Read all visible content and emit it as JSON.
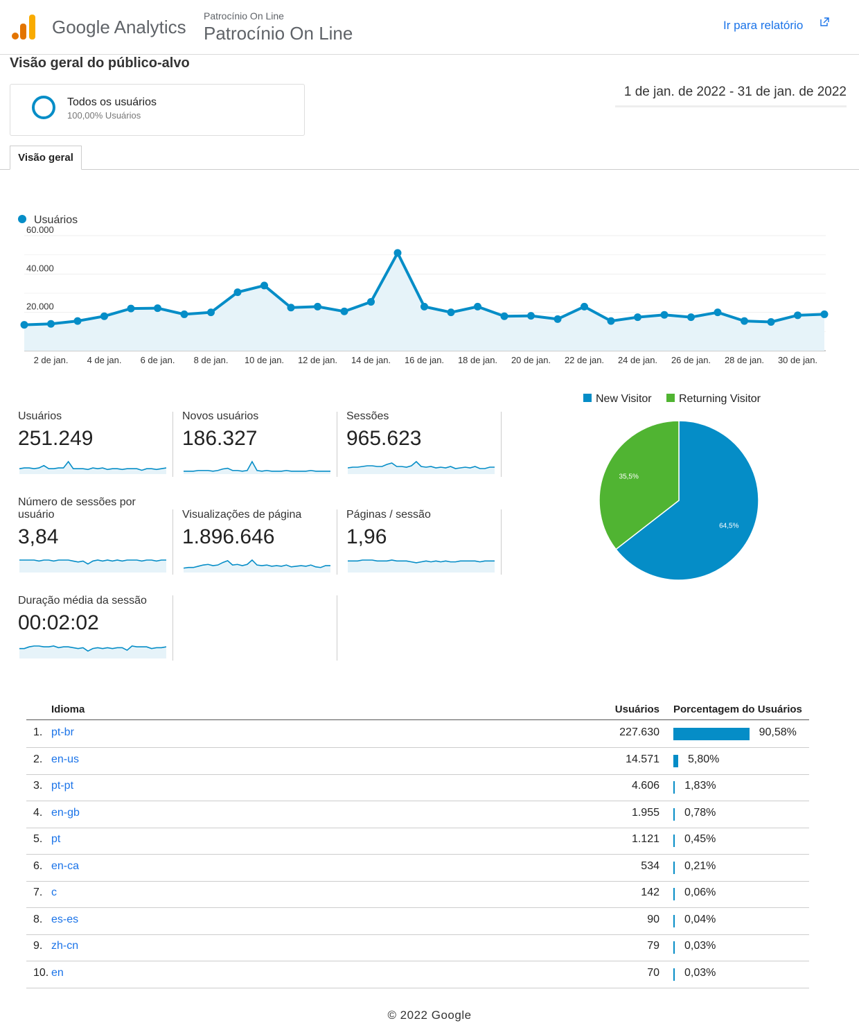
{
  "header": {
    "brand": "Google Analytics",
    "account_small": "Patrocínio On Line",
    "account_big": "Patrocínio On Line",
    "report_link": "Ir para relatório"
  },
  "page_title": "Visão geral do público-alvo",
  "segment": {
    "name": "Todos os usuários",
    "pct": "100,00% Usuários"
  },
  "date_range": "1 de jan. de 2022 - 31 de jan. de 2022",
  "tabs": [
    {
      "label": "Visão geral"
    }
  ],
  "colors": {
    "primary": "#058dc7",
    "green": "#50b432",
    "link": "#1a73e8"
  },
  "chart_data": {
    "type": "line",
    "series": [
      {
        "name": "Usuários",
        "values": [
          13500,
          14000,
          15500,
          18000,
          22000,
          22200,
          19000,
          20000,
          30500,
          34000,
          22500,
          23000,
          20500,
          25500,
          51000,
          23000,
          20000,
          23000,
          18000,
          18200,
          16500,
          23000,
          15500,
          17500,
          18700,
          17500,
          20000,
          15500,
          15000,
          18500,
          19000
        ]
      }
    ],
    "x": [
      1,
      2,
      3,
      4,
      5,
      6,
      7,
      8,
      9,
      10,
      11,
      12,
      13,
      14,
      15,
      16,
      17,
      18,
      19,
      20,
      21,
      22,
      23,
      24,
      25,
      26,
      27,
      28,
      29,
      30,
      31
    ],
    "x_tick_labels": [
      "2 de jan.",
      "4 de jan.",
      "6 de jan.",
      "8 de jan.",
      "10 de jan.",
      "12 de jan.",
      "14 de jan.",
      "16 de jan.",
      "18 de jan.",
      "20 de jan.",
      "22 de jan.",
      "24 de jan.",
      "26 de jan.",
      "28 de jan.",
      "30 de jan."
    ],
    "y_tick_labels": [
      "20.000",
      "40.000",
      "60.000"
    ],
    "ylim": [
      0,
      60000
    ],
    "legend_position": "top-left",
    "grid": true
  },
  "metrics": [
    {
      "label": "Usuários",
      "value": "251.249",
      "spark": [
        6,
        7,
        7,
        6,
        7,
        10,
        6,
        6,
        7,
        7,
        15,
        6,
        6,
        6,
        5,
        7,
        6,
        7,
        5,
        6,
        6,
        5,
        6,
        6,
        6,
        4,
        6,
        6,
        5,
        6,
        7
      ]
    },
    {
      "label": "Novos usuários",
      "value": "186.327",
      "spark": [
        3,
        3,
        3,
        4,
        4,
        4,
        3,
        4,
        6,
        7,
        4,
        4,
        3,
        4,
        16,
        4,
        3,
        4,
        3,
        3,
        3,
        4,
        3,
        3,
        3,
        3,
        4,
        3,
        3,
        3,
        3
      ]
    },
    {
      "label": "Sessões",
      "value": "965.623",
      "spark": [
        8,
        9,
        9,
        10,
        11,
        11,
        10,
        10,
        13,
        15,
        10,
        10,
        9,
        11,
        17,
        10,
        9,
        10,
        8,
        9,
        8,
        10,
        7,
        8,
        9,
        8,
        10,
        7,
        7,
        9,
        9
      ]
    },
    {
      "label": "Número de sessões por usuário",
      "value": "3,84",
      "spark": [
        12,
        12,
        12,
        12,
        11,
        12,
        12,
        11,
        12,
        12,
        12,
        11,
        10,
        11,
        8,
        11,
        12,
        11,
        12,
        11,
        12,
        11,
        12,
        12,
        12,
        11,
        12,
        12,
        11,
        12,
        12
      ]
    },
    {
      "label": "Visualizações de página",
      "value": "1.896.646",
      "spark": [
        6,
        7,
        7,
        9,
        11,
        12,
        10,
        11,
        15,
        18,
        11,
        12,
        10,
        12,
        19,
        11,
        10,
        11,
        9,
        10,
        9,
        11,
        8,
        9,
        10,
        9,
        11,
        8,
        7,
        10,
        10
      ]
    },
    {
      "label": "Páginas / sessão",
      "value": "1,96",
      "spark": [
        12,
        12,
        12,
        13,
        13,
        13,
        12,
        12,
        12,
        13,
        12,
        12,
        12,
        11,
        10,
        11,
        12,
        11,
        12,
        11,
        12,
        11,
        11,
        12,
        12,
        12,
        12,
        11,
        12,
        12,
        12
      ]
    },
    {
      "label": "Duração média da sessão",
      "value": "00:02:02",
      "spark": [
        11,
        11,
        13,
        14,
        14,
        13,
        13,
        14,
        12,
        13,
        13,
        12,
        11,
        12,
        8,
        11,
        12,
        11,
        12,
        11,
        12,
        12,
        9,
        14,
        13,
        13,
        13,
        11,
        12,
        12,
        13
      ]
    }
  ],
  "pie": {
    "legend": [
      {
        "label": "New Visitor",
        "color": "#058dc7"
      },
      {
        "label": "Returning Visitor",
        "color": "#50b432"
      }
    ],
    "slices": [
      {
        "label": "64,5%",
        "value": 64.5,
        "color": "#058dc7"
      },
      {
        "label": "35,5%",
        "value": 35.5,
        "color": "#50b432"
      }
    ]
  },
  "table": {
    "headers": {
      "lang": "Idioma",
      "users": "Usuários",
      "pct": "Porcentagem do Usuários"
    },
    "rows": [
      {
        "idx": "1.",
        "lang": "pt-br",
        "users": "227.630",
        "pct": "90,58%",
        "share": 90.58
      },
      {
        "idx": "2.",
        "lang": "en-us",
        "users": "14.571",
        "pct": "5,80%",
        "share": 5.8
      },
      {
        "idx": "3.",
        "lang": "pt-pt",
        "users": "4.606",
        "pct": "1,83%",
        "share": 1.83
      },
      {
        "idx": "4.",
        "lang": "en-gb",
        "users": "1.955",
        "pct": "0,78%",
        "share": 0.78
      },
      {
        "idx": "5.",
        "lang": "pt",
        "users": "1.121",
        "pct": "0,45%",
        "share": 0.45
      },
      {
        "idx": "6.",
        "lang": "en-ca",
        "users": "534",
        "pct": "0,21%",
        "share": 0.21
      },
      {
        "idx": "7.",
        "lang": "c",
        "users": "142",
        "pct": "0,06%",
        "share": 0.06
      },
      {
        "idx": "8.",
        "lang": "es-es",
        "users": "90",
        "pct": "0,04%",
        "share": 0.04
      },
      {
        "idx": "9.",
        "lang": "zh-cn",
        "users": "79",
        "pct": "0,03%",
        "share": 0.03
      },
      {
        "idx": "10.",
        "lang": "en",
        "users": "70",
        "pct": "0,03%",
        "share": 0.03
      }
    ]
  },
  "footer": "© 2022 Google"
}
